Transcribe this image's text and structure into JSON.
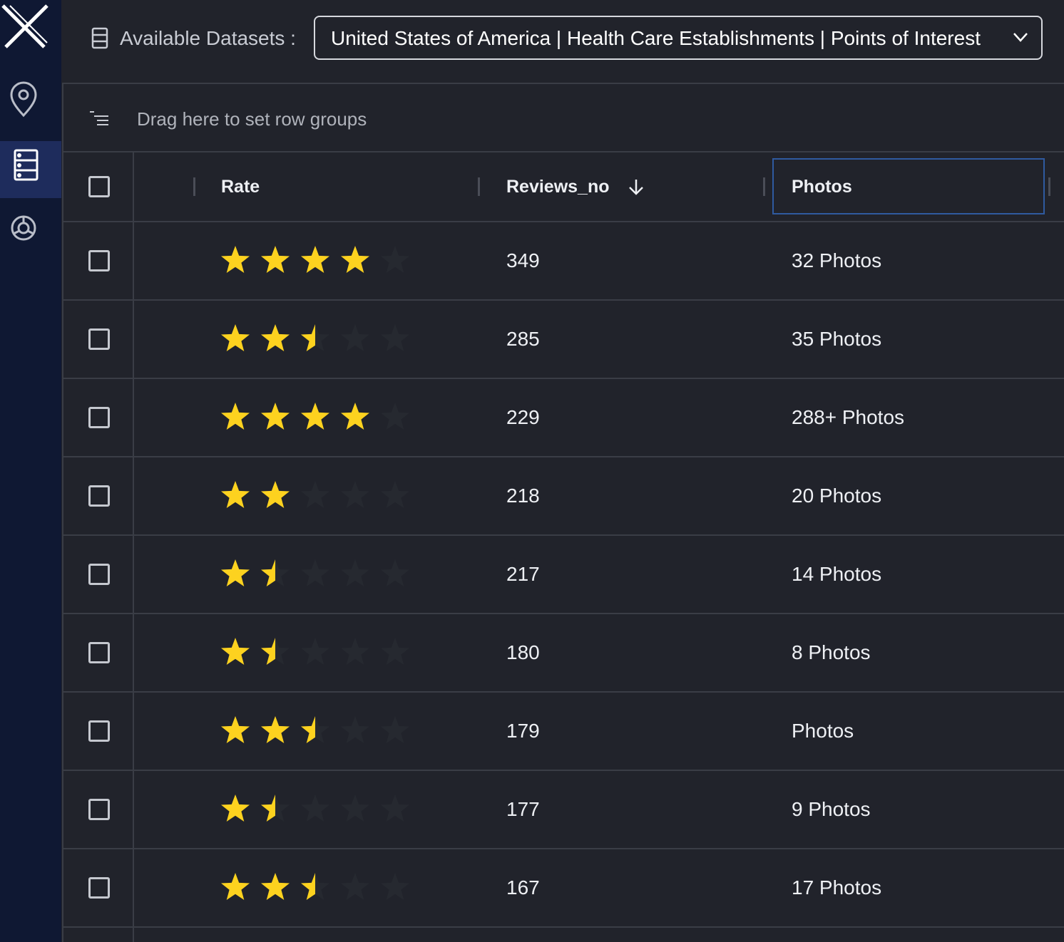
{
  "header": {
    "label": "Available Datasets :",
    "dataset": "United States of America | Health Care Establishments | Points of Interest"
  },
  "group_panel": {
    "placeholder": "Drag here to set row groups"
  },
  "table": {
    "columns": [
      "Rate",
      "Reviews_no",
      "Photos"
    ],
    "rows": [
      {
        "rating": 4,
        "reviews": 349,
        "photos": "32 Photos"
      },
      {
        "rating": 2.5,
        "reviews": 285,
        "photos": "35 Photos"
      },
      {
        "rating": 4,
        "reviews": 229,
        "photos": "288+ Photos"
      },
      {
        "rating": 2,
        "reviews": 218,
        "photos": "20 Photos"
      },
      {
        "rating": 1.5,
        "reviews": 217,
        "photos": "14 Photos"
      },
      {
        "rating": 1.5,
        "reviews": 180,
        "photos": "8 Photos"
      },
      {
        "rating": 2.5,
        "reviews": 179,
        "photos": "Photos"
      },
      {
        "rating": 1.5,
        "reviews": 177,
        "photos": "9 Photos"
      },
      {
        "rating": 2.5,
        "reviews": 167,
        "photos": "17 Photos"
      }
    ]
  }
}
